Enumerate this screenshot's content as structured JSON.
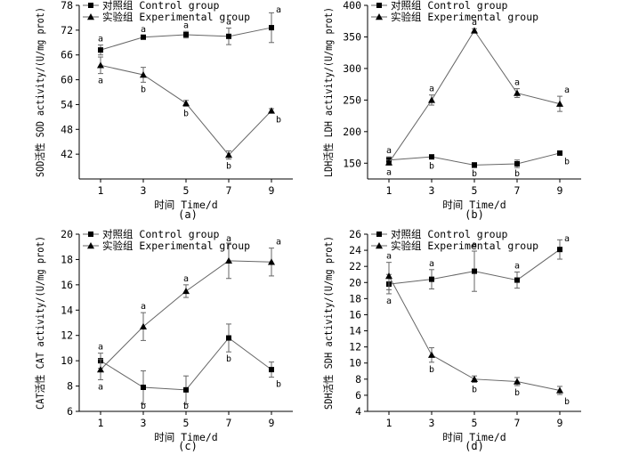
{
  "figure": {
    "panels_count": 4
  },
  "chart_data": [
    {
      "type": "line",
      "caption": "(a)",
      "xlabel": "时间 Time/d",
      "ylabel": "SOD活性 SOD activity/(U/mg prot)",
      "x": [
        1,
        3,
        5,
        7,
        9
      ],
      "xlim": [
        0,
        10
      ],
      "ylim": [
        36,
        78
      ],
      "yticks": [
        42,
        48,
        54,
        60,
        66,
        72,
        78
      ],
      "legend_position": "top-left",
      "series": [
        {
          "name": "对照组 Control group",
          "marker": "square",
          "values": [
            67.2,
            70.3,
            70.9,
            70.5,
            72.6
          ],
          "errors": [
            1.2,
            0.4,
            0.8,
            2.0,
            3.6
          ],
          "labels": [
            "a",
            "a",
            "a",
            "a",
            "a"
          ]
        },
        {
          "name": "实验组 Experimental group",
          "marker": "triangle",
          "values": [
            63.5,
            61.2,
            54.3,
            41.8,
            52.5
          ],
          "errors": [
            2.0,
            1.8,
            0.7,
            1.0,
            0.5
          ],
          "labels": [
            "a",
            "b",
            "b",
            "b",
            "b"
          ]
        }
      ]
    },
    {
      "type": "line",
      "caption": "(b)",
      "xlabel": "时间 Time/d",
      "ylabel": "LDH活性 LDH activity/(U/mg prot)",
      "x": [
        1,
        3,
        5,
        7,
        9
      ],
      "xlim": [
        0,
        10
      ],
      "ylim": [
        125,
        400
      ],
      "yticks": [
        150,
        200,
        250,
        300,
        350,
        400
      ],
      "legend_position": "top-left",
      "series": [
        {
          "name": "对照组 Control group",
          "marker": "square",
          "values": [
            155,
            160,
            147,
            149,
            166
          ],
          "errors": [
            5,
            3,
            4,
            6,
            2
          ],
          "labels": [
            "a",
            "b",
            "b",
            "b",
            "b"
          ]
        },
        {
          "name": "实验组 Experimental group",
          "marker": "triangle",
          "values": [
            151,
            250,
            360,
            261,
            244
          ],
          "errors": [
            4,
            8,
            3,
            7,
            12
          ],
          "labels": [
            "a",
            "a",
            "a",
            "a",
            "a"
          ]
        }
      ]
    },
    {
      "type": "line",
      "caption": "(c)",
      "xlabel": "时间 Time/d",
      "ylabel": "CAT活性 CAT activity/(U/mg prot)",
      "x": [
        1,
        3,
        5,
        7,
        9
      ],
      "xlim": [
        0,
        10
      ],
      "ylim": [
        6,
        20
      ],
      "yticks": [
        6,
        8,
        10,
        12,
        14,
        16,
        18,
        20
      ],
      "legend_position": "top-left",
      "series": [
        {
          "name": "对照组 Control group",
          "marker": "square",
          "values": [
            10.0,
            7.9,
            7.7,
            11.8,
            9.3
          ],
          "errors": [
            0.6,
            1.3,
            1.1,
            1.1,
            0.6
          ],
          "labels": [
            "a",
            "b",
            "b",
            "b",
            "b"
          ]
        },
        {
          "name": "实验组 Experimental group",
          "marker": "triangle",
          "values": [
            9.3,
            12.7,
            15.5,
            17.9,
            17.8
          ],
          "errors": [
            0.8,
            1.1,
            0.5,
            1.4,
            1.1
          ],
          "labels": [
            "a",
            "a",
            "a",
            "a",
            "a"
          ]
        }
      ]
    },
    {
      "type": "line",
      "caption": "(d)",
      "xlabel": "时间 Time/d",
      "ylabel": "SDH活性 SDH activity/(U/mg prot)",
      "x": [
        1,
        3,
        5,
        7,
        9
      ],
      "xlim": [
        0,
        10
      ],
      "ylim": [
        4,
        26
      ],
      "yticks": [
        4,
        6,
        8,
        10,
        12,
        14,
        16,
        18,
        20,
        22,
        24,
        26
      ],
      "legend_position": "top-left",
      "series": [
        {
          "name": "对照组 Control group",
          "marker": "square",
          "values": [
            19.8,
            20.4,
            21.4,
            20.3,
            24.1
          ],
          "errors": [
            1.2,
            1.2,
            2.5,
            1.0,
            1.2
          ],
          "labels": [
            "a",
            "a",
            "a",
            "a",
            "a"
          ]
        },
        {
          "name": "实验组 Experimental group",
          "marker": "triangle",
          "values": [
            20.8,
            11.0,
            8.0,
            7.7,
            6.6
          ],
          "errors": [
            1.7,
            0.9,
            0.4,
            0.5,
            0.5
          ],
          "labels": [
            "a",
            "b",
            "b",
            "b",
            "b"
          ]
        }
      ]
    }
  ]
}
